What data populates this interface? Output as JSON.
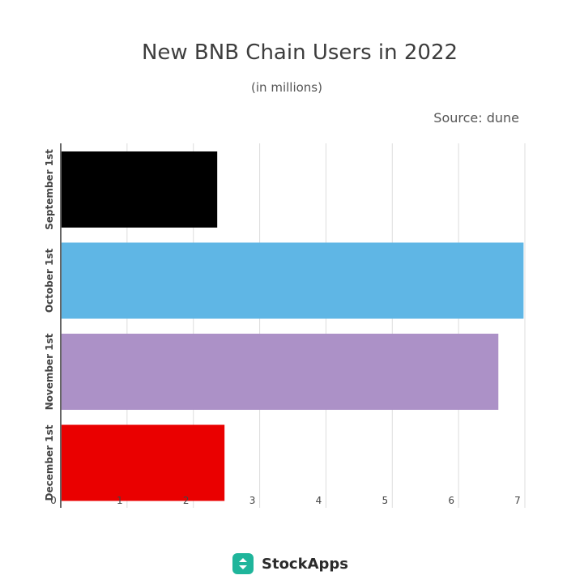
{
  "chart_data": {
    "type": "bar",
    "orientation": "horizontal",
    "title": "New BNB Chain Users in 2022",
    "subtitle": "(in millions)",
    "source": "Source: dune",
    "categories": [
      "September 1st",
      "October 1st",
      "November 1st",
      "December 1st"
    ],
    "values": [
      2.36,
      6.98,
      6.6,
      2.47
    ],
    "colors": [
      "#000000",
      "#5fb6e5",
      "#ac91c7",
      "#ea0000"
    ],
    "xlim": [
      0,
      7
    ],
    "xticks": [
      0,
      1,
      2,
      3,
      4,
      5,
      6,
      7
    ],
    "grid": true,
    "legend": "none"
  },
  "brand": {
    "name": "StockApps",
    "logo_icon": "stockapps-logo-icon",
    "logo_color": "#1fb59b"
  }
}
